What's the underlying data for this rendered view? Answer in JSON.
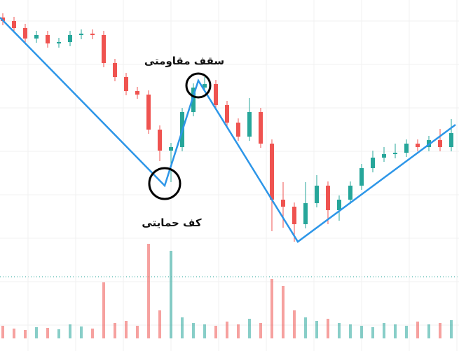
{
  "chart_data": {
    "type": "candlestick",
    "annotations": {
      "resistance": "سقف مقاومتی",
      "support": "کف حمایتی"
    },
    "x": [
      4,
      20,
      36,
      52,
      68,
      84,
      100,
      116,
      132,
      148,
      164,
      180,
      196,
      212,
      228,
      244,
      260,
      276,
      292,
      308,
      324,
      340,
      356,
      372,
      388,
      404,
      420,
      436,
      452,
      468,
      484,
      500,
      516,
      532,
      548,
      564,
      580,
      596,
      612,
      628,
      644
    ],
    "open": [
      475,
      470,
      460,
      445,
      450,
      438,
      440,
      450,
      452,
      450,
      410,
      390,
      370,
      365,
      315,
      285,
      290,
      340,
      375,
      380,
      350,
      325,
      305,
      340,
      295,
      215,
      205,
      180,
      210,
      235,
      200,
      215,
      235,
      260,
      275,
      280,
      282,
      295,
      290,
      300,
      290
    ],
    "high": [
      481,
      476,
      466,
      456,
      456,
      446,
      456,
      458,
      458,
      456,
      416,
      396,
      376,
      371,
      321,
      296,
      346,
      381,
      390,
      386,
      356,
      331,
      360,
      346,
      301,
      240,
      211,
      240,
      250,
      241,
      221,
      241,
      266,
      285,
      290,
      295,
      301,
      301,
      306,
      316,
      330
    ],
    "low": [
      464,
      454,
      439,
      439,
      432,
      432,
      434,
      444,
      444,
      404,
      384,
      364,
      359,
      309,
      270,
      240,
      284,
      334,
      369,
      344,
      319,
      299,
      299,
      289,
      170,
      175,
      155,
      174,
      204,
      180,
      185,
      209,
      229,
      254,
      269,
      274,
      276,
      284,
      284,
      284,
      284
    ],
    "close": [
      470,
      460,
      445,
      450,
      438,
      440,
      450,
      452,
      450,
      410,
      390,
      370,
      365,
      315,
      285,
      290,
      340,
      375,
      380,
      350,
      325,
      305,
      340,
      295,
      215,
      205,
      180,
      210,
      235,
      200,
      215,
      235,
      260,
      275,
      280,
      282,
      295,
      290,
      300,
      290,
      310
    ],
    "volume": [
      18,
      14,
      12,
      16,
      15,
      13,
      20,
      17,
      14,
      80,
      22,
      25,
      18,
      135,
      40,
      125,
      30,
      22,
      20,
      18,
      24,
      20,
      28,
      22,
      85,
      75,
      40,
      30,
      25,
      28,
      22,
      20,
      18,
      16,
      22,
      20,
      18,
      24,
      20,
      22,
      26
    ],
    "up_color": "#26a69a",
    "down_color": "#ef5350",
    "zigzag": {
      "color": "#2d96e8",
      "x": [
        0,
        235,
        283,
        425,
        650
      ],
      "values": [
        475,
        235,
        385,
        155,
        322
      ]
    },
    "xlim": [
      0,
      655
    ],
    "ylim": [
      155,
      500
    ],
    "volume_lim": [
      0,
      140
    ]
  }
}
